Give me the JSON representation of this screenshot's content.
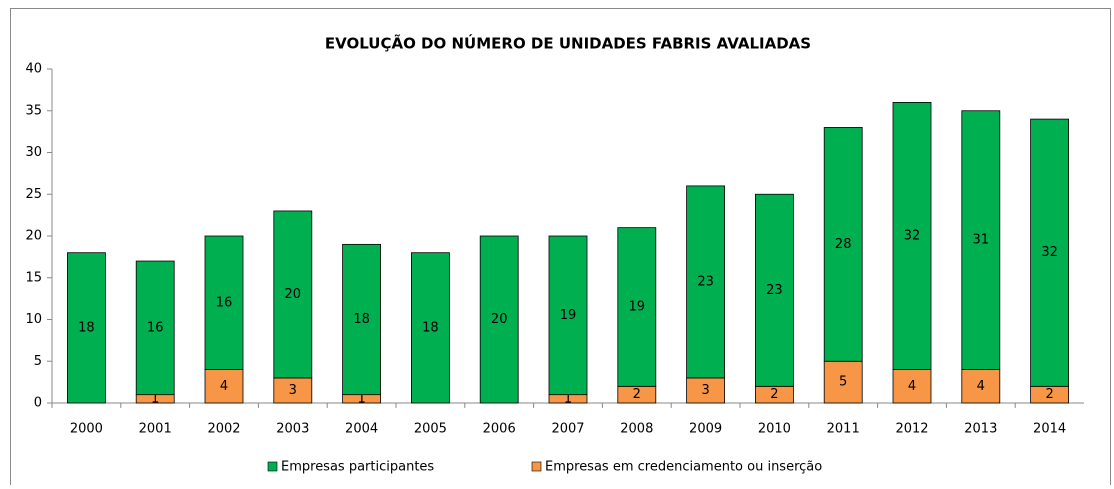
{
  "chart_data": {
    "type": "stacked_bar",
    "title": "EVOLUÇÃO DO NÚMERO DE UNIDADES FABRIS AVALIADAS",
    "categories": [
      "2000",
      "2001",
      "2002",
      "2003",
      "2004",
      "2005",
      "2006",
      "2007",
      "2008",
      "2009",
      "2010",
      "2011",
      "2012",
      "2013",
      "2014"
    ],
    "series": [
      {
        "name": "Empresas participantes",
        "color": "#00b050",
        "values": [
          18,
          16,
          16,
          20,
          18,
          18,
          20,
          19,
          19,
          23,
          23,
          28,
          32,
          31,
          32
        ]
      },
      {
        "name": "Empresas em credenciamento ou inserção",
        "color": "#f79646",
        "values": [
          0,
          1,
          4,
          3,
          1,
          0,
          0,
          1,
          2,
          3,
          2,
          5,
          4,
          4,
          2
        ]
      }
    ],
    "ylim": [
      0,
      40
    ],
    "yticks": [
      0,
      5,
      10,
      15,
      20,
      25,
      30,
      35,
      40
    ],
    "grid": false,
    "legend": "bottom"
  }
}
